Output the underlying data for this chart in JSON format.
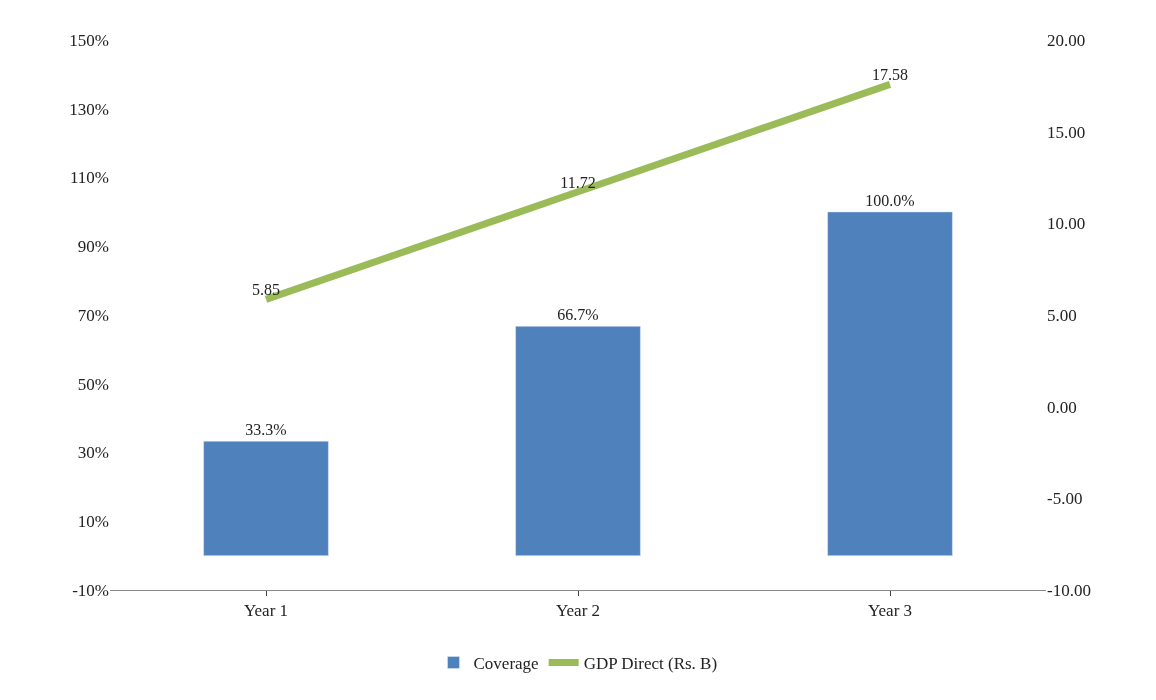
{
  "chart_data": {
    "type": "bar",
    "categories": [
      "Year 1",
      "Year 2",
      "Year 3"
    ],
    "series": [
      {
        "name": "Coverage",
        "color": "#4f81bd",
        "values": [
          33.3,
          66.7,
          100.0
        ],
        "value_labels": [
          "33.3%",
          "66.7%",
          "100.0%"
        ]
      },
      {
        "name": "GDP Direct (Rs. B)",
        "type": "line",
        "axis": "y2",
        "color": "#9bbb59",
        "values": [
          5.85,
          11.72,
          17.58
        ],
        "value_labels": [
          "5.85",
          "11.72",
          "17.58"
        ],
        "marker": "none"
      }
    ],
    "ylim": [
      -10,
      150
    ],
    "yticks": [
      {
        "value": -10,
        "label": "-10%"
      },
      {
        "value": 10,
        "label": "10%"
      },
      {
        "value": 30,
        "label": "30%"
      },
      {
        "value": 50,
        "label": "50%"
      },
      {
        "value": 70,
        "label": "70%"
      },
      {
        "value": 90,
        "label": "90%"
      },
      {
        "value": 110,
        "label": "110%"
      },
      {
        "value": 130,
        "label": "130%"
      },
      {
        "value": 150,
        "label": "150%"
      }
    ],
    "y2lim": [
      -10,
      20
    ],
    "y2ticks": [
      {
        "value": -10,
        "label": "-10.00"
      },
      {
        "value": -5,
        "label": "-5.00"
      },
      {
        "value": 0,
        "label": "0.00"
      },
      {
        "value": 5,
        "label": "5.00"
      },
      {
        "value": 10,
        "label": "10.00"
      },
      {
        "value": 15,
        "label": "15.00"
      },
      {
        "value": 20,
        "label": "20.00"
      }
    ],
    "legend": "bottom"
  }
}
